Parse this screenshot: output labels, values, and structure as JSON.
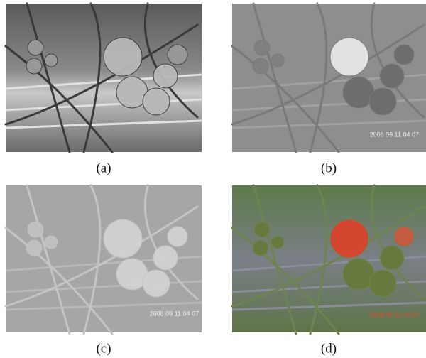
{
  "panels": [
    {
      "caption": "(a)"
    },
    {
      "caption": "(b)",
      "timestamp": "2008 09 11 04 07"
    },
    {
      "caption": "(c)",
      "timestamp": "2008 09 11 04 07"
    },
    {
      "caption": "(d)",
      "timestamp": "2008 09 11 04 07"
    }
  ]
}
